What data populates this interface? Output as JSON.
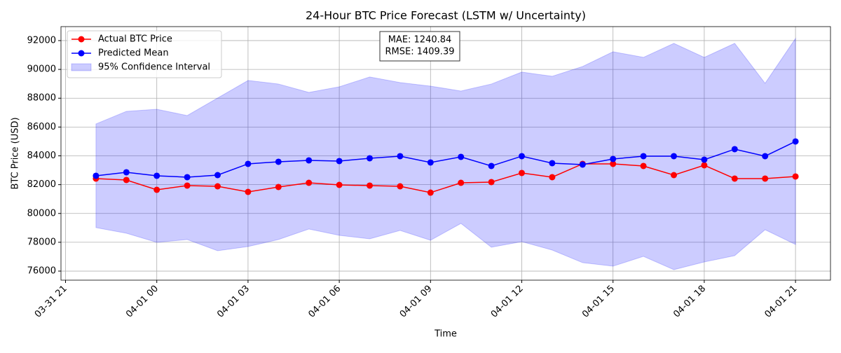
{
  "chart_data": {
    "type": "line",
    "title": "24-Hour BTC Price Forecast (LSTM w/ Uncertainty)",
    "x_label": "Time",
    "y_label": "BTC Price (USD)",
    "x": [
      "03-31 22:00",
      "03-31 23:00",
      "04-01 00:00",
      "04-01 01:00",
      "04-01 02:00",
      "04-01 03:00",
      "04-01 04:00",
      "04-01 05:00",
      "04-01 06:00",
      "04-01 07:00",
      "04-01 08:00",
      "04-01 09:00",
      "04-01 10:00",
      "04-01 11:00",
      "04-01 12:00",
      "04-01 13:00",
      "04-01 14:00",
      "04-01 15:00",
      "04-01 16:00",
      "04-01 17:00",
      "04-01 18:00",
      "04-01 19:00",
      "04-01 20:00",
      "04-01 21:00"
    ],
    "series": [
      {
        "name": "Actual BTC Price",
        "color": "#ff0000",
        "values": [
          82420,
          82323,
          81642,
          81934,
          81885,
          81496,
          81837,
          82128,
          81982,
          81934,
          81885,
          81447,
          82128,
          82177,
          82809,
          82518,
          83442,
          83442,
          83296,
          82663,
          83345,
          82420,
          82420,
          82566
        ]
      },
      {
        "name": "Predicted Mean",
        "color": "#0000ff",
        "values": [
          82615,
          82858,
          82615,
          82518,
          82663,
          83442,
          83588,
          83685,
          83636,
          83831,
          83977,
          83539,
          83928,
          83296,
          83977,
          83491,
          83393,
          83782,
          83977,
          83977,
          83733,
          84463,
          83977,
          84998
        ]
      }
    ],
    "band": {
      "name": "95% Confidence Interval",
      "color": "#0000ff",
      "upper": [
        86214,
        87089,
        87235,
        86798,
        88014,
        89230,
        88986,
        88403,
        88792,
        89473,
        89084,
        88840,
        88500,
        88986,
        89813,
        89522,
        90202,
        91224,
        90835,
        91807,
        90835,
        91807,
        89035,
        92148
      ],
      "lower": [
        79016,
        78626,
        77994,
        78189,
        77411,
        77702,
        78189,
        78918,
        78481,
        78237,
        78821,
        78140,
        79307,
        77654,
        78043,
        77459,
        76584,
        76340,
        77021,
        76097,
        76632,
        77070,
        78870,
        77848
      ]
    },
    "annotation": [
      "MAE: 1240.84",
      "RMSE: 1409.39"
    ],
    "xlim": [
      "03-31 20:51",
      "04-01 22:09"
    ],
    "xticks": [
      {
        "value": "03-31 21:00",
        "label": "03-31 21"
      },
      {
        "value": "04-01 00:00",
        "label": "04-01 00"
      },
      {
        "value": "04-01 03:00",
        "label": "04-01 03"
      },
      {
        "value": "04-01 06:00",
        "label": "04-01 06"
      },
      {
        "value": "04-01 09:00",
        "label": "04-01 09"
      },
      {
        "value": "04-01 12:00",
        "label": "04-01 12"
      },
      {
        "value": "04-01 15:00",
        "label": "04-01 15"
      },
      {
        "value": "04-01 18:00",
        "label": "04-01 18"
      },
      {
        "value": "04-01 21:00",
        "label": "04-01 21"
      }
    ],
    "ylim": [
      75370,
      92970
    ],
    "yticks": [
      76000,
      78000,
      80000,
      82000,
      84000,
      86000,
      88000,
      90000,
      92000
    ],
    "grid": true,
    "legend": "upper-left"
  }
}
